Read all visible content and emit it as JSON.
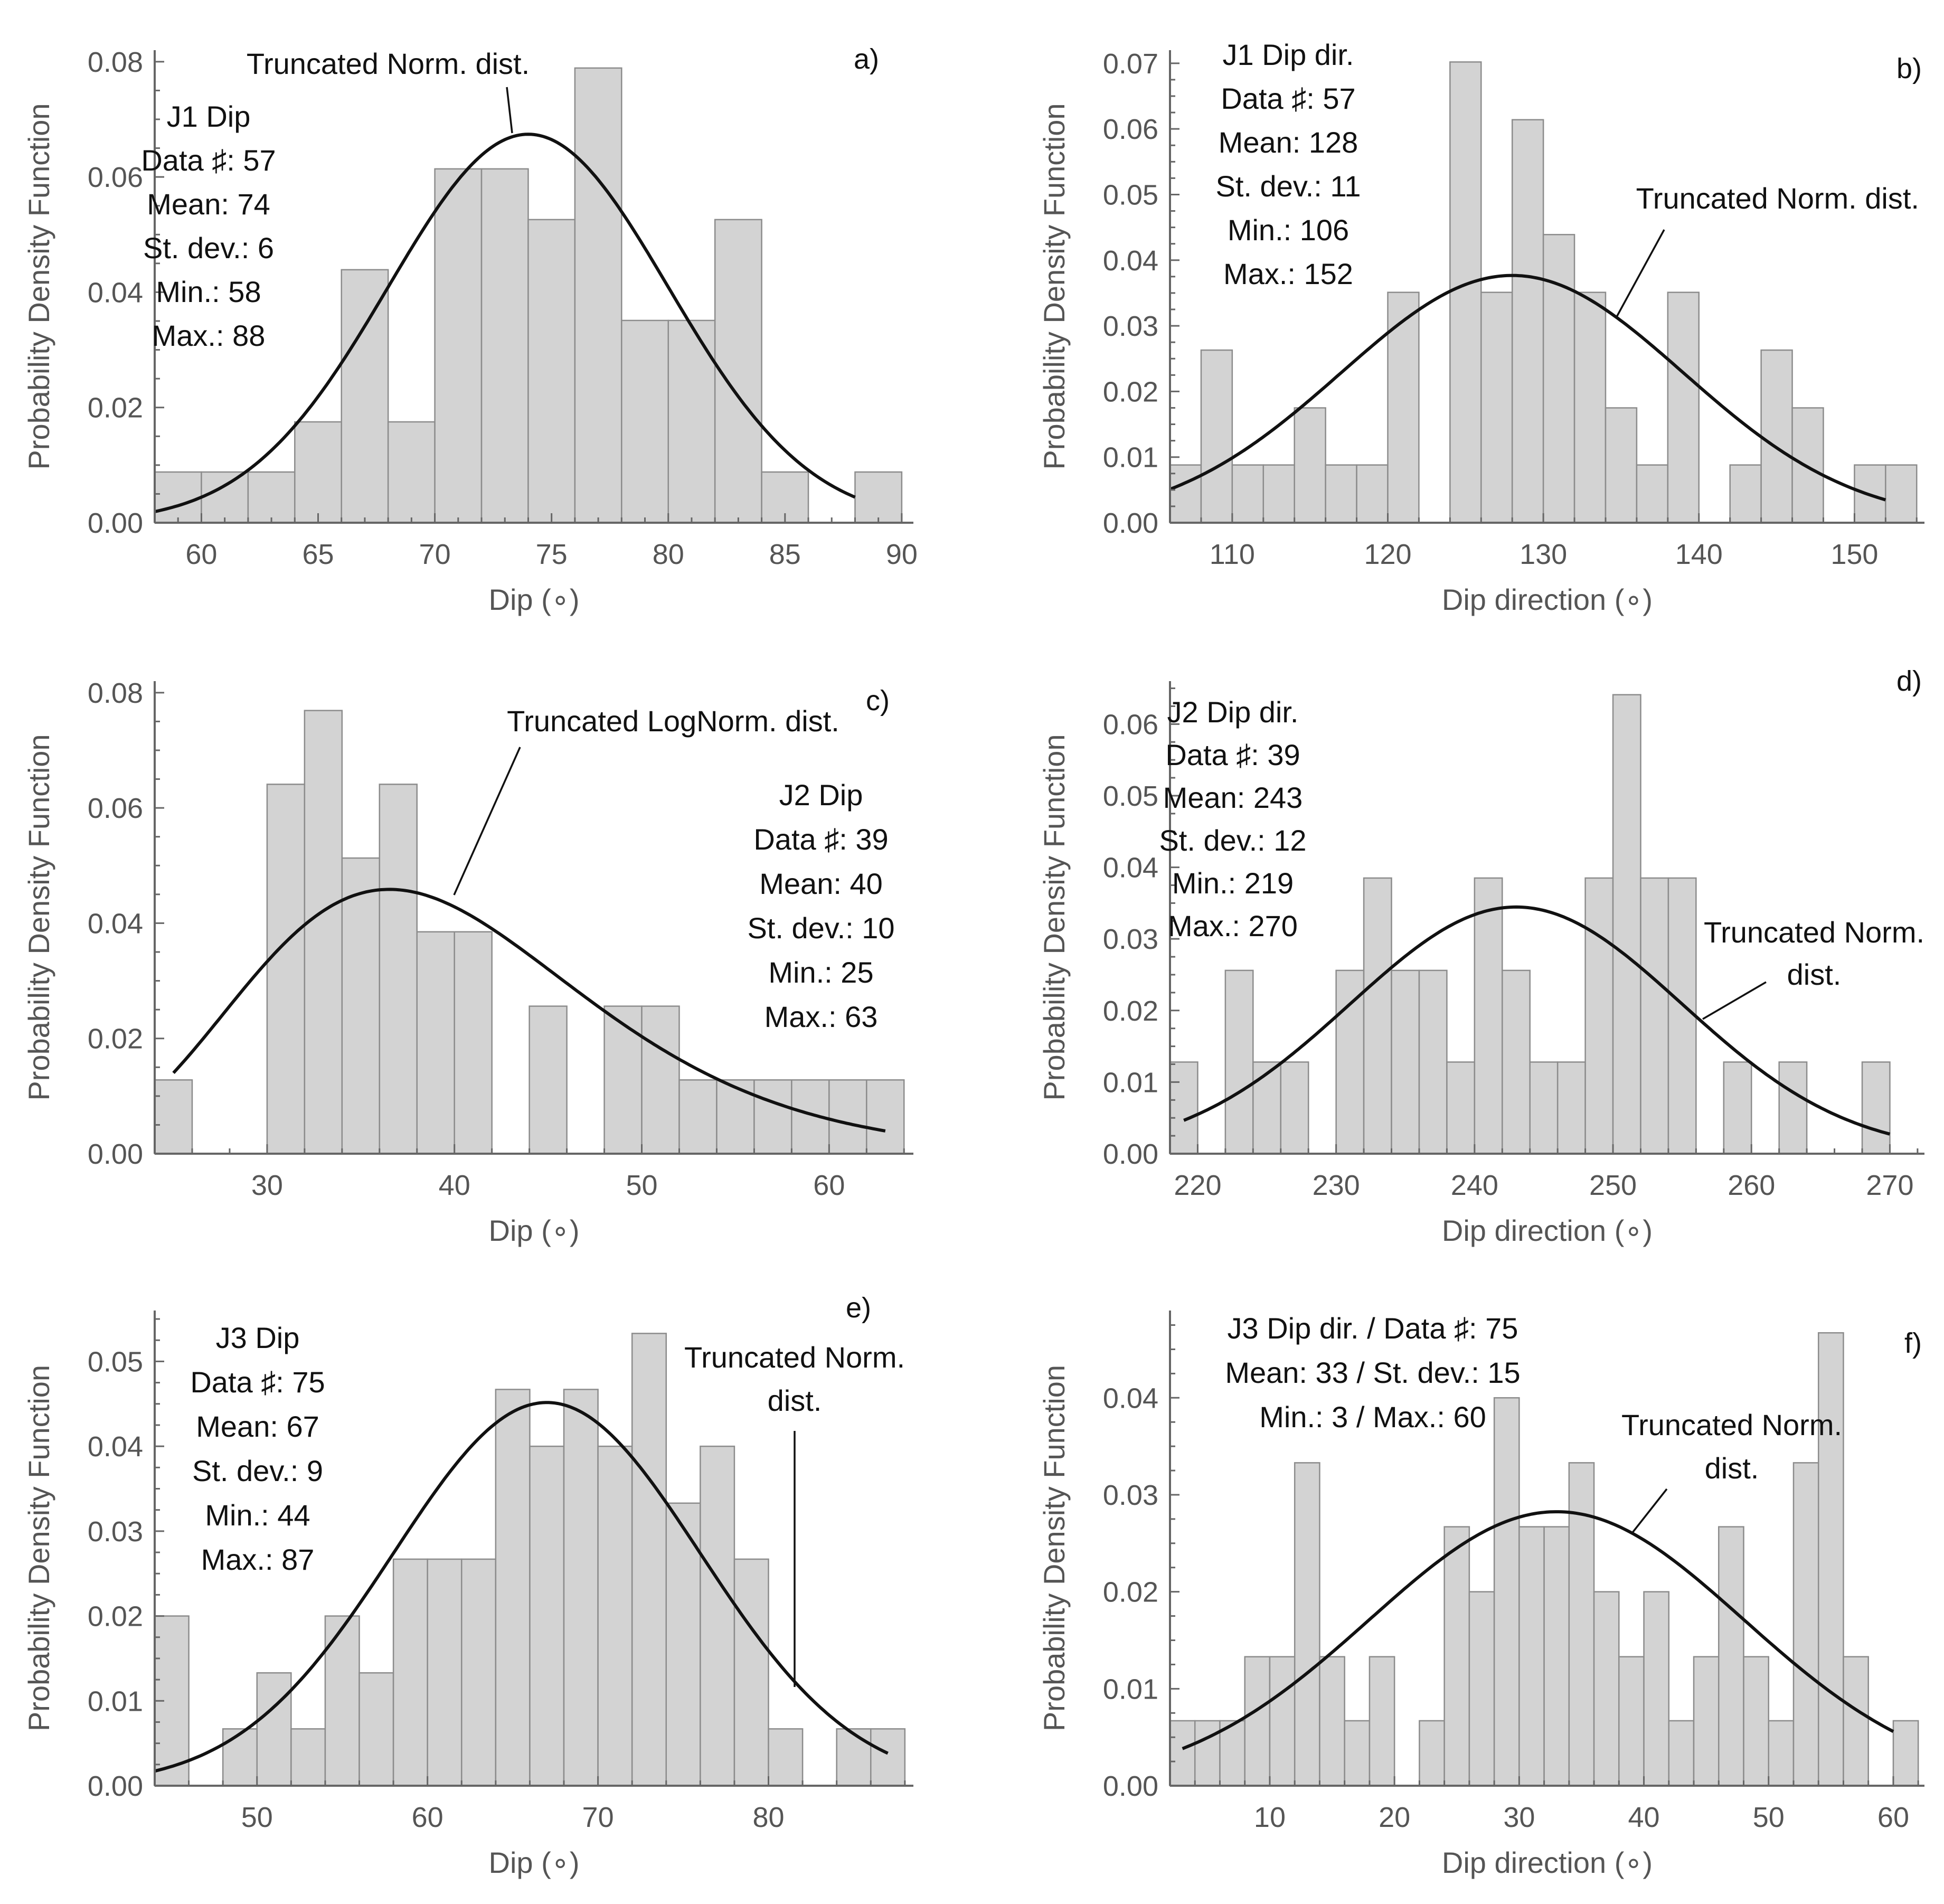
{
  "chart_data": [
    {
      "id": "a",
      "type": "bar",
      "panel_label": "a)",
      "title": "J1 Dip",
      "stats": [
        "Data ♯: 57",
        "Mean: 74",
        "St. dev.: 6",
        "Min.: 58",
        "Max.: 88"
      ],
      "xlabel": "Dip (∘)",
      "ylabel": "Probability Density Function",
      "xlim": [
        58,
        90.5
      ],
      "ylim": [
        0,
        0.082
      ],
      "xticks": [
        60,
        65,
        70,
        75,
        80,
        85,
        90
      ],
      "xminor": 1,
      "yticks": [
        0.0,
        0.02,
        0.04,
        0.06,
        0.08
      ],
      "yminor": 0.005,
      "xtick_labels": [
        "60",
        "65",
        "70",
        "75",
        "80",
        "85",
        "90"
      ],
      "ytick_labels": [
        "0.00",
        "0.02",
        "0.04",
        "0.06",
        "0.08"
      ],
      "bin_start": 58,
      "bin_width": 2,
      "values": [
        0.0088,
        0.0088,
        0.0088,
        0.0175,
        0.0439,
        0.0175,
        0.0614,
        0.0614,
        0.0526,
        0.0789,
        0.0351,
        0.0351,
        0.0526,
        0.0088,
        0,
        0.0088
      ],
      "fit": {
        "dist": "normal",
        "mean": 74,
        "sd": 6,
        "min": 58,
        "max": 88
      },
      "annotation": {
        "lines": [
          "Truncated Norm. dist."
        ]
      }
    },
    {
      "id": "b",
      "type": "bar",
      "panel_label": "b)",
      "title": "J1 Dip dir.",
      "stats": [
        "Data ♯: 57",
        "Mean: 128",
        "St. dev.: 11",
        "Min.: 106",
        "Max.: 152"
      ],
      "xlabel": "Dip direction (∘)",
      "ylabel": "Probability Density Function",
      "xlim": [
        106,
        154.5
      ],
      "ylim": [
        0,
        0.072
      ],
      "xticks": [
        110,
        120,
        130,
        140,
        150
      ],
      "xminor": 2,
      "yticks": [
        0.0,
        0.01,
        0.02,
        0.03,
        0.04,
        0.05,
        0.06,
        0.07
      ],
      "yminor": 0.0025,
      "xtick_labels": [
        "110",
        "120",
        "130",
        "140",
        "150"
      ],
      "ytick_labels": [
        "0.00",
        "0.01",
        "0.02",
        "0.03",
        "0.04",
        "0.05",
        "0.06",
        "0.07"
      ],
      "bin_start": 106,
      "bin_width": 2,
      "values": [
        0.0088,
        0.0263,
        0.0088,
        0.0088,
        0.0175,
        0.0088,
        0.0088,
        0.0351,
        0,
        0.0702,
        0.0351,
        0.0614,
        0.0439,
        0.0351,
        0.0175,
        0.0088,
        0.0351,
        0,
        0.0088,
        0.0263,
        0.0175,
        0,
        0.0088,
        0.0088
      ],
      "fit": {
        "dist": "normal",
        "mean": 128,
        "sd": 11,
        "min": 106,
        "max": 152
      },
      "annotation": {
        "lines": [
          "Truncated Norm. dist."
        ]
      }
    },
    {
      "id": "c",
      "type": "bar",
      "panel_label": "c)",
      "title": "J2 Dip",
      "stats": [
        "Data ♯: 39",
        "Mean: 40",
        "St. dev.: 10",
        "Min.: 25",
        "Max.: 63"
      ],
      "xlabel": "Dip (∘)",
      "ylabel": "Probability Density Function",
      "xlim": [
        24,
        64.5
      ],
      "ylim": [
        0,
        0.082
      ],
      "xticks": [
        30,
        40,
        50,
        60
      ],
      "xminor": 2,
      "yticks": [
        0.0,
        0.02,
        0.04,
        0.06,
        0.08
      ],
      "yminor": 0.005,
      "xtick_labels": [
        "30",
        "40",
        "50",
        "60"
      ],
      "ytick_labels": [
        "0.00",
        "0.02",
        "0.04",
        "0.06",
        "0.08"
      ],
      "bin_start": 24,
      "bin_width": 2,
      "values": [
        0.0128,
        0,
        0,
        0.0641,
        0.0769,
        0.0513,
        0.0641,
        0.0385,
        0.0385,
        0,
        0.0256,
        0,
        0.0256,
        0.0256,
        0.0128,
        0.0128,
        0.0128,
        0.0128,
        0.0128,
        0.0128
      ],
      "fit": {
        "dist": "lognormal",
        "mean": 40,
        "sd": 10,
        "min": 25,
        "max": 63
      },
      "annotation": {
        "lines": [
          "Truncated LogNorm. dist."
        ]
      }
    },
    {
      "id": "d",
      "type": "bar",
      "panel_label": "d)",
      "title": "J2 Dip dir.",
      "stats": [
        "Data ♯: 39",
        "Mean: 243",
        "St. dev.: 12",
        "Min.: 219",
        "Max.: 270"
      ],
      "xlabel": "Dip direction (∘)",
      "ylabel": "Probability Density Function",
      "xlim": [
        218,
        272.5
      ],
      "ylim": [
        0,
        0.066
      ],
      "xticks": [
        220,
        230,
        240,
        250,
        260,
        270
      ],
      "xminor": 2,
      "yticks": [
        0.0,
        0.01,
        0.02,
        0.03,
        0.04,
        0.05,
        0.06
      ],
      "yminor": 0.0025,
      "xtick_labels": [
        "220",
        "230",
        "240",
        "250",
        "260",
        "270"
      ],
      "ytick_labels": [
        "0.00",
        "0.01",
        "0.02",
        "0.03",
        "0.04",
        "0.05",
        "0.06"
      ],
      "bin_start": 218,
      "bin_width": 2,
      "values": [
        0.0128,
        0,
        0.0256,
        0.0128,
        0.0128,
        0,
        0.0256,
        0.0385,
        0.0256,
        0.0256,
        0.0128,
        0.0385,
        0.0256,
        0.0128,
        0.0128,
        0.0385,
        0.0641,
        0.0385,
        0.0385,
        0,
        0.0128,
        0,
        0.0128,
        0,
        0,
        0.0128
      ],
      "fit": {
        "dist": "normal",
        "mean": 243,
        "sd": 12,
        "min": 219,
        "max": 270
      },
      "annotation": {
        "lines": [
          "Truncated Norm.",
          "dist."
        ]
      }
    },
    {
      "id": "e",
      "type": "bar",
      "panel_label": "e)",
      "title": "J3 Dip",
      "stats": [
        "Data ♯: 75",
        "Mean: 67",
        "St. dev.: 9",
        "Min.: 44",
        "Max.: 87"
      ],
      "xlabel": "Dip (∘)",
      "ylabel": "Probability Density Function",
      "xlim": [
        44,
        88.5
      ],
      "ylim": [
        0,
        0.056
      ],
      "xticks": [
        50,
        60,
        70,
        80
      ],
      "xminor": 2,
      "yticks": [
        0.0,
        0.01,
        0.02,
        0.03,
        0.04,
        0.05
      ],
      "yminor": 0.0025,
      "xtick_labels": [
        "50",
        "60",
        "70",
        "80"
      ],
      "ytick_labels": [
        "0.00",
        "0.01",
        "0.02",
        "0.03",
        "0.04",
        "0.05"
      ],
      "bin_start": 44,
      "bin_width": 2,
      "values": [
        0.02,
        0,
        0.0067,
        0.0133,
        0.0067,
        0.02,
        0.0133,
        0.0267,
        0.0267,
        0.0267,
        0.0467,
        0.04,
        0.0467,
        0.04,
        0.0533,
        0.0333,
        0.04,
        0.0267,
        0.0067,
        0,
        0.0067,
        0.0067
      ],
      "fit": {
        "dist": "normal",
        "mean": 67,
        "sd": 9,
        "min": 44,
        "max": 87
      },
      "annotation": {
        "lines": [
          "Truncated Norm.",
          "dist."
        ]
      }
    },
    {
      "id": "f",
      "type": "bar",
      "panel_label": "f)",
      "title": "J3 Dip dir. / Data ♯: 75",
      "stats": [
        "Mean: 33 / St. dev.: 15",
        "Min.: 3 / Max.: 60"
      ],
      "xlabel": "Dip direction (∘)",
      "ylabel": "Probability Density Function",
      "xlim": [
        2,
        62.5
      ],
      "ylim": [
        0,
        0.049
      ],
      "xticks": [
        10,
        20,
        30,
        40,
        50,
        60
      ],
      "xminor": 2,
      "yticks": [
        0.0,
        0.01,
        0.02,
        0.03,
        0.04
      ],
      "yminor": 0.0025,
      "xtick_labels": [
        "10",
        "20",
        "30",
        "40",
        "50",
        "60"
      ],
      "ytick_labels": [
        "0.00",
        "0.01",
        "0.02",
        "0.03",
        "0.04"
      ],
      "bin_start": 2,
      "bin_width": 2,
      "values": [
        0.0067,
        0.0067,
        0.0067,
        0.0133,
        0.0133,
        0.0333,
        0.0133,
        0.0067,
        0.0133,
        0,
        0.0067,
        0.0267,
        0.02,
        0.04,
        0.0267,
        0.0267,
        0.0333,
        0.02,
        0.0133,
        0.02,
        0.0067,
        0.0133,
        0.0267,
        0.0133,
        0.0067,
        0.0333,
        0.0467,
        0.0133,
        0,
        0.0067
      ],
      "fit": {
        "dist": "normal",
        "mean": 33,
        "sd": 15,
        "min": 3,
        "max": 60
      },
      "annotation": {
        "lines": [
          "Truncated Norm.",
          "dist."
        ]
      }
    }
  ]
}
